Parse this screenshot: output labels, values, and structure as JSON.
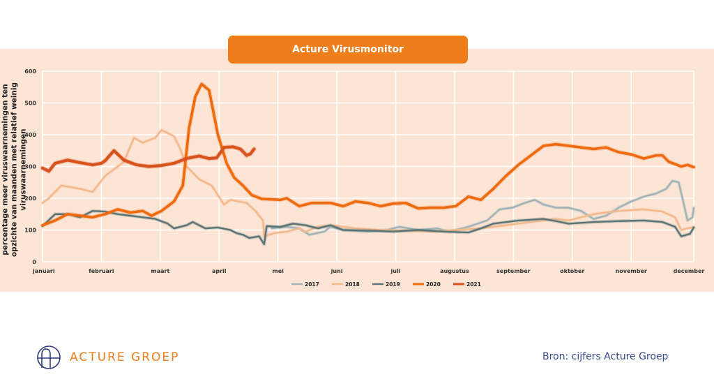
{
  "header": {
    "title": "Acture Virusmonitor"
  },
  "footer": {
    "logo_text": "ACTURE GROEP",
    "source": "Bron: cijfers Acture Groep"
  },
  "colors": {
    "panel_bg": "#fde5d6",
    "accent": "#ee7d1a",
    "s2017": "#9fb3b6",
    "s2018": "#f2b98c",
    "s2019": "#5a7475",
    "s2020": "#ee6a0e",
    "s2021": "#d9531e"
  },
  "chart_data": {
    "type": "line",
    "title": "Acture Virusmonitor",
    "xlabel": "",
    "ylabel": "percentage meer viruswaarnemingen ten opzichte van maanden met relatief weinig viruswaarnemingen",
    "ylim": [
      0,
      600
    ],
    "yticks": [
      0,
      100,
      200,
      300,
      400,
      500,
      600
    ],
    "xlim": [
      0,
      52
    ],
    "x_unit": "week of year",
    "xticks": [
      {
        "week": 0,
        "label": "januari"
      },
      {
        "week": 4.7,
        "label": "februari"
      },
      {
        "week": 9.4,
        "label": "maart"
      },
      {
        "week": 14.1,
        "label": "april"
      },
      {
        "week": 18.8,
        "label": "mei"
      },
      {
        "week": 23.5,
        "label": "juni"
      },
      {
        "week": 28.2,
        "label": "juli"
      },
      {
        "week": 32.9,
        "label": "augustus"
      },
      {
        "week": 37.6,
        "label": "september"
      },
      {
        "week": 42.3,
        "label": "oktober"
      },
      {
        "week": 47.0,
        "label": "november"
      },
      {
        "week": 52.0,
        "label": "december"
      }
    ],
    "grid": true,
    "legend_position": "bottom-center",
    "series": [
      {
        "name": "2017",
        "color_key": "s2017",
        "width": 2.4,
        "x": [
          18.3,
          19.5,
          20.5,
          21.3,
          22.5,
          23,
          24,
          26,
          27.5,
          28.5,
          30,
          31.5,
          32.5,
          34,
          35.5,
          36.5,
          37.5,
          38.5,
          39.3,
          40,
          41,
          42,
          43,
          44,
          45,
          46,
          47,
          48,
          49,
          49.8,
          50.3,
          50.8,
          51.1,
          51.5,
          51.9,
          52
        ],
        "values": [
          105,
          110,
          105,
          85,
          95,
          110,
          100,
          95,
          100,
          110,
          100,
          105,
          95,
          110,
          130,
          165,
          170,
          185,
          195,
          180,
          170,
          170,
          160,
          135,
          145,
          170,
          190,
          205,
          215,
          230,
          255,
          250,
          200,
          130,
          140,
          170
        ]
      },
      {
        "name": "2018",
        "color_key": "s2018",
        "width": 2.4,
        "x": [
          0,
          0.5,
          1.5,
          3,
          4,
          5,
          6,
          6.5,
          7.3,
          8,
          9,
          9.5,
          10.5,
          11,
          11.5,
          12.5,
          13.5,
          14.5,
          15,
          16.3,
          17,
          17.6,
          17.7,
          18.5,
          19.5,
          20.5,
          21,
          22,
          23,
          24,
          25,
          27,
          29,
          31,
          33,
          35,
          37,
          39,
          41,
          42,
          43,
          44,
          46,
          48,
          49.5,
          50.5,
          51,
          52
        ],
        "values": [
          185,
          200,
          240,
          230,
          220,
          270,
          300,
          315,
          390,
          375,
          390,
          415,
          395,
          355,
          300,
          260,
          240,
          180,
          195,
          185,
          160,
          130,
          80,
          90,
          95,
          105,
          95,
          110,
          115,
          110,
          105,
          100,
          98,
          95,
          100,
          105,
          115,
          125,
          135,
          130,
          140,
          150,
          160,
          165,
          158,
          140,
          100,
          110
        ]
      },
      {
        "name": "2019",
        "color_key": "s2019",
        "width": 2.4,
        "x": [
          0,
          1,
          2,
          3,
          4,
          5,
          6,
          7,
          8,
          9,
          10,
          10.5,
          11.5,
          12,
          13,
          14,
          15,
          15.5,
          16,
          16.5,
          17.3,
          17.7,
          17.9,
          19,
          20,
          21,
          22,
          23,
          24,
          26,
          28,
          30,
          32,
          34,
          35,
          36,
          38,
          40,
          41,
          42,
          44,
          46,
          48,
          49.5,
          50.5,
          51,
          51.7,
          52
        ],
        "values": [
          112,
          150,
          150,
          140,
          160,
          158,
          150,
          145,
          140,
          135,
          120,
          105,
          115,
          125,
          105,
          108,
          100,
          90,
          85,
          75,
          80,
          55,
          112,
          110,
          120,
          115,
          105,
          115,
          100,
          98,
          95,
          100,
          95,
          92,
          105,
          120,
          130,
          135,
          128,
          120,
          125,
          128,
          130,
          125,
          110,
          80,
          88,
          108
        ]
      },
      {
        "name": "2020",
        "color_key": "s2020",
        "width": 3.6,
        "x": [
          0,
          1,
          2,
          3,
          4,
          5,
          6,
          7,
          8,
          8.7,
          9.5,
          10.5,
          11.2,
          11.7,
          12.2,
          12.7,
          13.3,
          14,
          14.7,
          15.3,
          16,
          16.7,
          17.5,
          19,
          19.5,
          20.5,
          21.5,
          23,
          24,
          25,
          26,
          27,
          28,
          29,
          30,
          31,
          32,
          33,
          34,
          35,
          36,
          37,
          38,
          39,
          40,
          41,
          42,
          43,
          44,
          45,
          46,
          47,
          48,
          49,
          49.5,
          50,
          51,
          51.5,
          52
        ],
        "values": [
          115,
          130,
          150,
          145,
          140,
          150,
          165,
          155,
          160,
          145,
          160,
          190,
          240,
          420,
          520,
          560,
          540,
          400,
          310,
          265,
          240,
          210,
          198,
          195,
          200,
          175,
          185,
          185,
          175,
          190,
          185,
          175,
          183,
          185,
          168,
          170,
          170,
          175,
          205,
          195,
          230,
          270,
          305,
          335,
          365,
          370,
          365,
          360,
          355,
          360,
          345,
          338,
          325,
          335,
          335,
          315,
          300,
          305,
          298
        ]
      },
      {
        "name": "2021",
        "color_key": "s2021",
        "width": 4.2,
        "x": [
          0,
          0.5,
          1,
          2,
          3,
          4,
          4.7,
          5,
          5.7,
          6.5,
          7.5,
          8.5,
          9.5,
          10.5,
          11.5,
          12.5,
          13.3,
          13.9,
          14.5,
          15.2,
          15.8,
          16.3,
          16.6,
          16.9
        ],
        "values": [
          295,
          285,
          310,
          320,
          312,
          305,
          310,
          318,
          350,
          320,
          305,
          300,
          303,
          310,
          325,
          333,
          325,
          327,
          360,
          362,
          355,
          335,
          340,
          355
        ]
      }
    ]
  }
}
